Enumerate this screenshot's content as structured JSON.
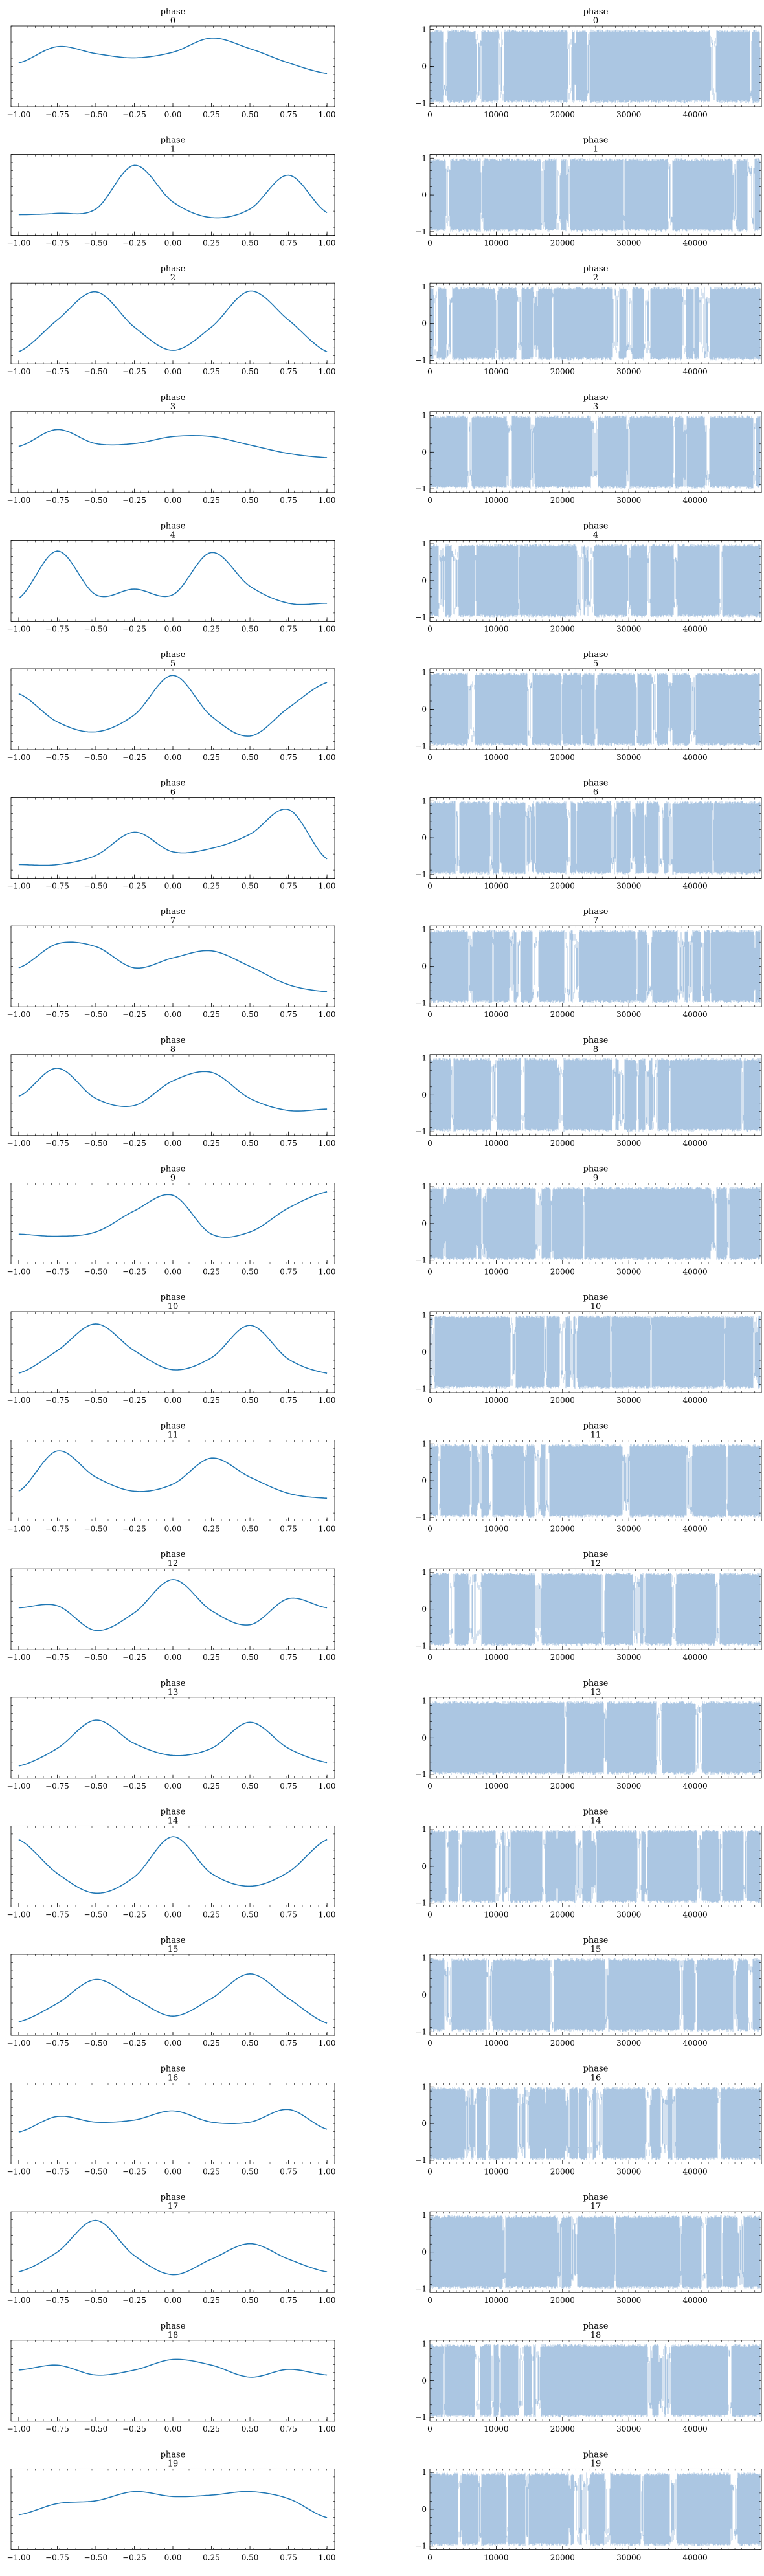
{
  "chart_data": {
    "type": "line",
    "layout": "20 rows x 2 columns: density (left) and trace (right) per phase index",
    "row_title_prefix": "phase",
    "line_color": "#1f77b4",
    "trace_color": "#a7c3e0",
    "density_xlim": [
      -1.05,
      1.05
    ],
    "density_ticks": [
      -1.0,
      -0.75,
      -0.5,
      -0.25,
      0.0,
      0.25,
      0.5,
      0.75,
      1.0
    ],
    "density_tick_labels": [
      "−1.00",
      "−0.75",
      "−0.50",
      "−0.25",
      "0.00",
      "0.25",
      "0.50",
      "0.75",
      "1.00"
    ],
    "trace_xlim": [
      0,
      50000
    ],
    "trace_ticks": [
      0,
      10000,
      20000,
      30000,
      40000
    ],
    "trace_tick_labels": [
      "0",
      "10000",
      "20000",
      "30000",
      "40000"
    ],
    "trace_ylim": [
      -1.1,
      1.1
    ],
    "trace_yticks": [
      -1,
      0,
      1
    ],
    "trace_ytick_labels": [
      "−1",
      "0",
      "1"
    ],
    "density_x": [
      -1.0,
      -0.75,
      -0.5,
      -0.25,
      0.0,
      0.25,
      0.5,
      0.75,
      1.0
    ],
    "panels": [
      {
        "index": "0",
        "density": [
          0.55,
          0.78,
          0.68,
          0.62,
          0.7,
          0.9,
          0.75,
          0.55,
          0.4
        ]
      },
      {
        "index": "1",
        "density": [
          0.22,
          0.24,
          0.3,
          0.92,
          0.4,
          0.18,
          0.3,
          0.78,
          0.25
        ]
      },
      {
        "index": "2",
        "density": [
          0.1,
          0.55,
          0.95,
          0.45,
          0.12,
          0.45,
          0.96,
          0.55,
          0.1
        ]
      },
      {
        "index": "3",
        "density": [
          0.58,
          0.82,
          0.62,
          0.62,
          0.72,
          0.72,
          0.6,
          0.48,
          0.42
        ]
      },
      {
        "index": "4",
        "density": [
          0.25,
          0.92,
          0.3,
          0.38,
          0.3,
          0.9,
          0.42,
          0.18,
          0.18
        ]
      },
      {
        "index": "5",
        "density": [
          0.72,
          0.32,
          0.18,
          0.42,
          0.98,
          0.4,
          0.12,
          0.52,
          0.88
        ]
      },
      {
        "index": "6",
        "density": [
          0.12,
          0.12,
          0.25,
          0.58,
          0.3,
          0.35,
          0.55,
          0.9,
          0.2
        ]
      },
      {
        "index": "7",
        "density": [
          0.48,
          0.82,
          0.78,
          0.48,
          0.62,
          0.72,
          0.5,
          0.24,
          0.14
        ]
      },
      {
        "index": "8",
        "density": [
          0.48,
          0.88,
          0.45,
          0.35,
          0.7,
          0.82,
          0.45,
          0.28,
          0.3
        ]
      },
      {
        "index": "9",
        "density": [
          0.35,
          0.32,
          0.38,
          0.68,
          0.9,
          0.35,
          0.38,
          0.72,
          0.95
        ]
      },
      {
        "index": "10",
        "density": [
          0.2,
          0.52,
          0.9,
          0.52,
          0.25,
          0.42,
          0.88,
          0.4,
          0.2
        ]
      },
      {
        "index": "11",
        "density": [
          0.35,
          0.92,
          0.55,
          0.35,
          0.45,
          0.82,
          0.55,
          0.32,
          0.25
        ]
      },
      {
        "index": "12",
        "density": [
          0.52,
          0.55,
          0.2,
          0.45,
          0.92,
          0.48,
          0.28,
          0.65,
          0.52
        ]
      },
      {
        "index": "13",
        "density": [
          0.1,
          0.35,
          0.75,
          0.42,
          0.25,
          0.35,
          0.72,
          0.35,
          0.15
        ]
      },
      {
        "index": "14",
        "density": [
          0.88,
          0.4,
          0.12,
          0.35,
          0.92,
          0.4,
          0.22,
          0.42,
          0.88
        ]
      },
      {
        "index": "15",
        "density": [
          0.12,
          0.38,
          0.72,
          0.45,
          0.2,
          0.45,
          0.8,
          0.45,
          0.1
        ]
      },
      {
        "index": "16",
        "density": [
          0.38,
          0.6,
          0.52,
          0.55,
          0.68,
          0.52,
          0.52,
          0.7,
          0.42
        ]
      },
      {
        "index": "17",
        "density": [
          0.22,
          0.5,
          0.95,
          0.45,
          0.18,
          0.4,
          0.62,
          0.4,
          0.22
        ]
      },
      {
        "index": "18",
        "density": [
          0.65,
          0.72,
          0.58,
          0.65,
          0.8,
          0.72,
          0.55,
          0.66,
          0.58
        ]
      },
      {
        "index": "19",
        "density": [
          0.42,
          0.58,
          0.62,
          0.75,
          0.68,
          0.7,
          0.75,
          0.65,
          0.38
        ]
      }
    ]
  }
}
